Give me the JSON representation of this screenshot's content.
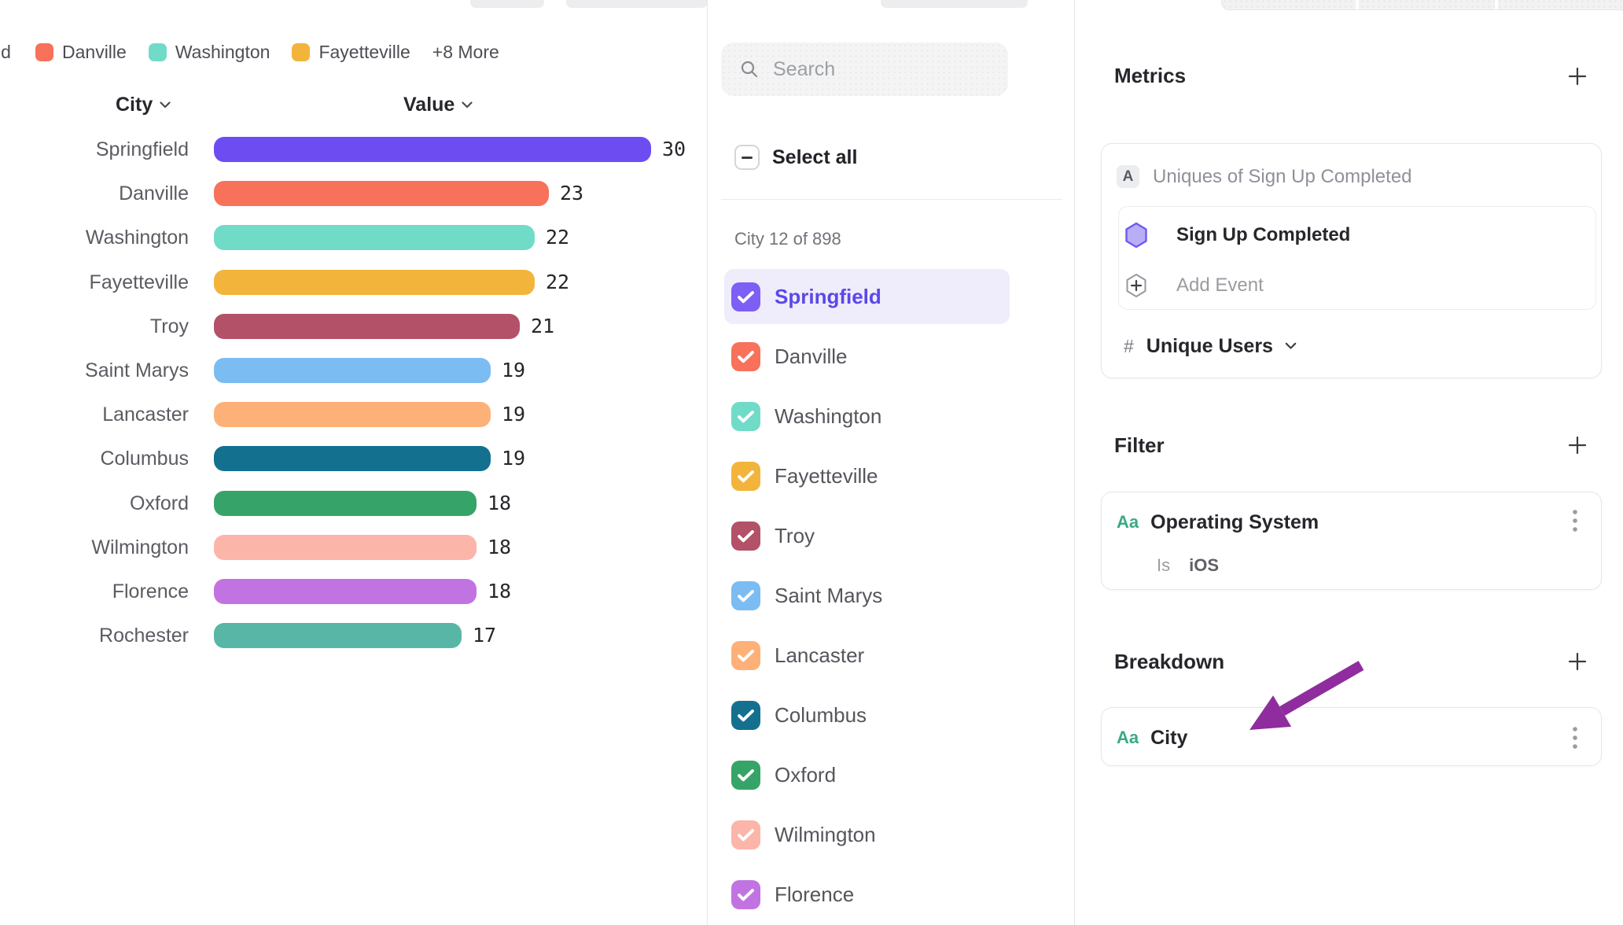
{
  "legend": {
    "truncated_item": "ld",
    "items": [
      {
        "label": "Danville",
        "color": "#F8715B"
      },
      {
        "label": "Washington",
        "color": "#70DCC8"
      },
      {
        "label": "Fayetteville",
        "color": "#F3B43C"
      }
    ],
    "more_label": "+8 More"
  },
  "chart_data": {
    "type": "bar",
    "orientation": "horizontal",
    "title": "",
    "xlabel": "Value",
    "ylabel": "City",
    "xlim": [
      0,
      30
    ],
    "grid": false,
    "columns": {
      "category": "City",
      "value": "Value"
    },
    "categories": [
      "Springfield",
      "Danville",
      "Washington",
      "Fayetteville",
      "Troy",
      "Saint Marys",
      "Lancaster",
      "Columbus",
      "Oxford",
      "Wilmington",
      "Florence",
      "Rochester"
    ],
    "values": [
      30,
      23,
      22,
      22,
      21,
      19,
      19,
      19,
      18,
      18,
      18,
      17
    ],
    "colors": [
      "#6D4DF2",
      "#F8715B",
      "#70DCC8",
      "#F3B43C",
      "#B25168",
      "#7BBCF2",
      "#FDB178",
      "#14708F",
      "#36A469",
      "#FCB5A9",
      "#C273E2",
      "#58B6A6"
    ]
  },
  "filter_panel": {
    "search_placeholder": "Search",
    "select_all_label": "Select all",
    "count_label": "City 12 of 898",
    "items": [
      {
        "name": "Springfield",
        "color": "#7D5FF6",
        "checked": true,
        "highlighted": true
      },
      {
        "name": "Danville",
        "color": "#F8715B",
        "checked": true,
        "highlighted": false
      },
      {
        "name": "Washington",
        "color": "#70DCC8",
        "checked": true,
        "highlighted": false
      },
      {
        "name": "Fayetteville",
        "color": "#F3B43C",
        "checked": true,
        "highlighted": false
      },
      {
        "name": "Troy",
        "color": "#B25168",
        "checked": true,
        "highlighted": false
      },
      {
        "name": "Saint Marys",
        "color": "#7BBCF2",
        "checked": true,
        "highlighted": false
      },
      {
        "name": "Lancaster",
        "color": "#FDB178",
        "checked": true,
        "highlighted": false
      },
      {
        "name": "Columbus",
        "color": "#14708F",
        "checked": true,
        "highlighted": false
      },
      {
        "name": "Oxford",
        "color": "#36A469",
        "checked": true,
        "highlighted": false
      },
      {
        "name": "Wilmington",
        "color": "#FCB5A9",
        "checked": true,
        "highlighted": false
      },
      {
        "name": "Florence",
        "color": "#C273E2",
        "checked": true,
        "highlighted": false
      }
    ],
    "selected_row_style": {
      "bg": "#EFECFC",
      "text": "#5A48E8"
    }
  },
  "inspector": {
    "metrics": {
      "header": "Metrics",
      "metric_letter": "A",
      "metric_title": "Uniques of Sign Up Completed",
      "event_name": "Sign Up Completed",
      "add_event_label": "Add Event",
      "measure_prefix": "#",
      "measure_name": "Unique Users"
    },
    "filter": {
      "header": "Filter",
      "property_type": "Aa",
      "property_name": "Operating System",
      "operator": "Is",
      "operand": "iOS"
    },
    "breakdown": {
      "header": "Breakdown",
      "property_type": "Aa",
      "property_name": "City"
    }
  },
  "annotation": {
    "arrow_color": "#8F2D9E"
  }
}
